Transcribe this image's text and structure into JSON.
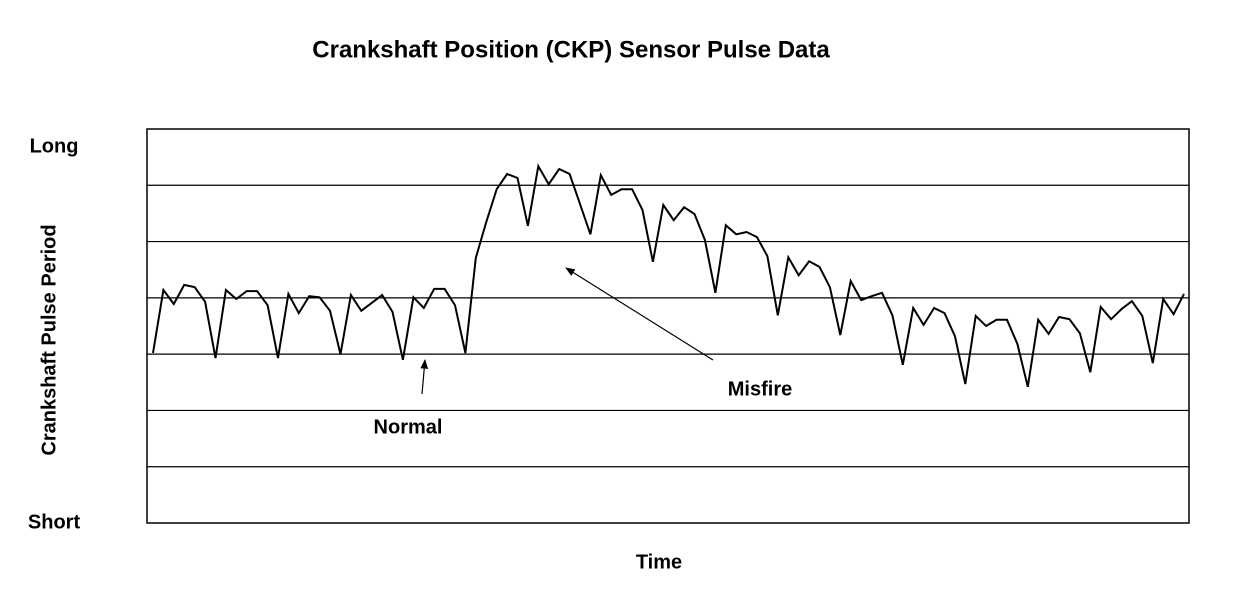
{
  "chart_data": {
    "type": "line",
    "title": "Crankshaft Position (CKP) Sensor Pulse Data",
    "x_label": "Time",
    "y_label": "Crankshaft Pulse Period",
    "ylim": [
      0,
      7
    ],
    "yticks": [
      {
        "value": 0,
        "label": "Short"
      },
      {
        "value": 7,
        "label": "Long"
      }
    ],
    "ygrid": [
      1,
      2,
      3,
      4,
      5,
      6
    ],
    "grid": true,
    "color": "#000000",
    "annotations": [
      "Normal",
      "Misfire"
    ],
    "values": [
      3.02,
      4.14,
      3.89,
      4.23,
      4.19,
      3.93,
      2.93,
      4.14,
      3.98,
      4.12,
      4.12,
      3.87,
      2.93,
      4.07,
      3.73,
      4.03,
      4.01,
      3.77,
      3.0,
      4.05,
      3.77,
      3.91,
      4.05,
      3.75,
      2.9,
      4.01,
      3.82,
      4.16,
      4.16,
      3.87,
      3.02,
      4.71,
      5.35,
      5.93,
      6.2,
      6.13,
      5.28,
      6.34,
      6.02,
      6.29,
      6.2,
      5.67,
      5.13,
      6.18,
      5.83,
      5.93,
      5.93,
      5.56,
      4.64,
      5.65,
      5.38,
      5.61,
      5.49,
      5.03,
      4.09,
      5.29,
      5.13,
      5.17,
      5.08,
      4.74,
      3.69,
      4.72,
      4.4,
      4.65,
      4.55,
      4.19,
      3.34,
      4.3,
      3.96,
      4.03,
      4.09,
      3.69,
      2.81,
      3.82,
      3.52,
      3.82,
      3.73,
      3.32,
      2.47,
      3.68,
      3.5,
      3.61,
      3.61,
      3.18,
      2.42,
      3.61,
      3.36,
      3.66,
      3.62,
      3.37,
      2.68,
      3.84,
      3.62,
      3.8,
      3.94,
      3.68,
      2.84,
      3.98,
      3.71,
      4.07
    ]
  }
}
